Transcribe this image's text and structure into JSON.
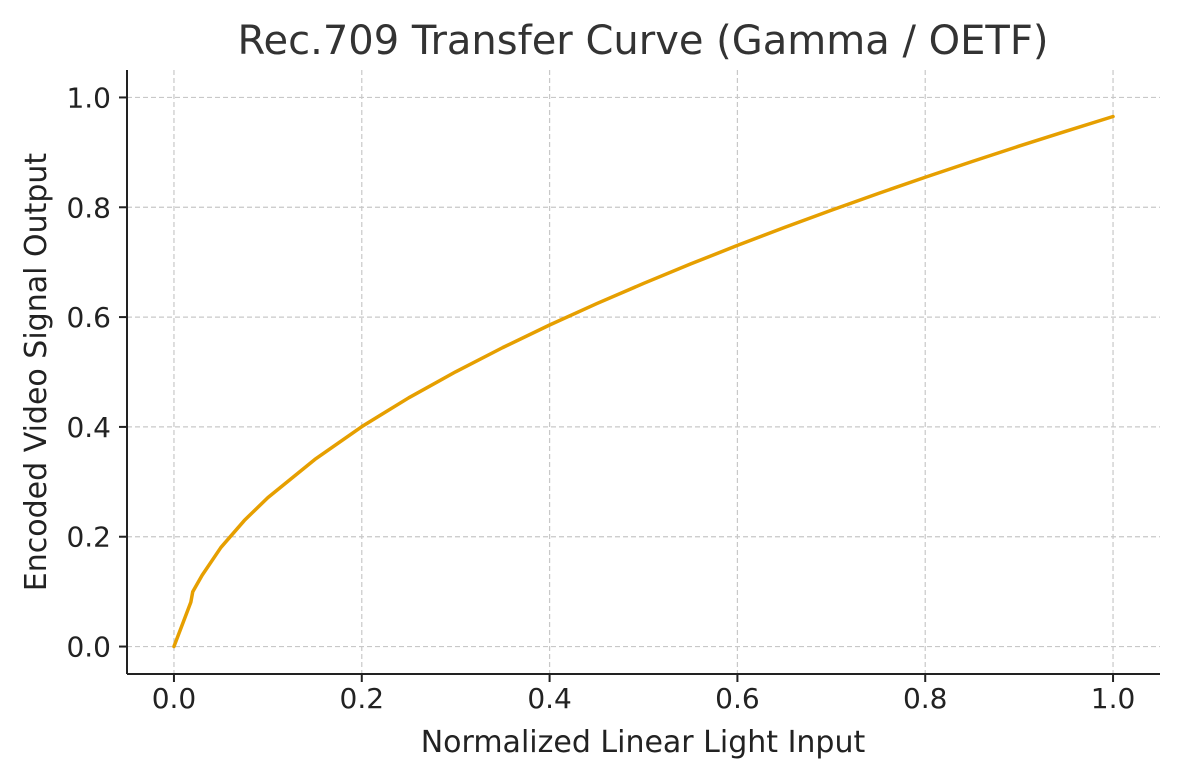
{
  "chart_data": {
    "type": "line",
    "title": "Rec.709 Transfer Curve (Gamma / OETF)",
    "xlabel": "Normalized Linear Light Input",
    "ylabel": "Encoded Video Signal Output",
    "xlim": [
      -0.05,
      1.05
    ],
    "ylim": [
      -0.05,
      1.05
    ],
    "x_ticks": [
      "0.0",
      "0.2",
      "0.4",
      "0.6",
      "0.8",
      "1.0"
    ],
    "y_ticks": [
      "0.0",
      "0.2",
      "0.4",
      "0.6",
      "0.8",
      "1.0"
    ],
    "grid": true,
    "series": [
      {
        "color": "#E69F00",
        "x": [
          0.0,
          0.01,
          0.018,
          0.02,
          0.03,
          0.05,
          0.075,
          0.1,
          0.15,
          0.2,
          0.25,
          0.3,
          0.35,
          0.4,
          0.45,
          0.5,
          0.55,
          0.6,
          0.65,
          0.7,
          0.75,
          0.8,
          0.85,
          0.9,
          0.95,
          1.0
        ],
        "y": [
          0.0,
          0.045,
          0.081,
          0.0998,
          0.1298,
          0.1805,
          0.2297,
          0.2713,
          0.3407,
          0.4005,
          0.453,
          0.5004,
          0.5444,
          0.5856,
          0.6244,
          0.6613,
          0.6966,
          0.7305,
          0.7631,
          0.7946,
          0.8251,
          0.8547,
          0.8834,
          0.9114,
          0.9386,
          0.9653
        ]
      }
    ]
  }
}
